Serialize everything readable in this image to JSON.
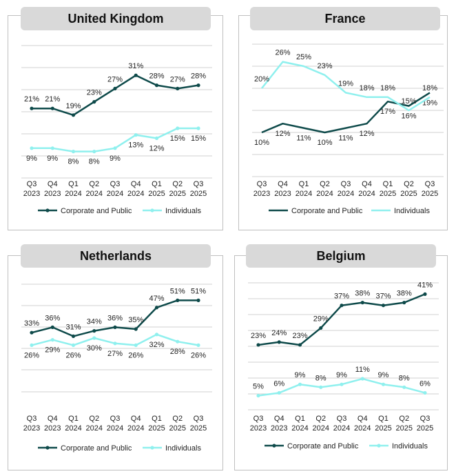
{
  "palette": {
    "dark": "#0e4a4a",
    "light": "#8ff0ee",
    "grid": "#d0d0d0",
    "text": "#222222"
  },
  "chart_data": [
    {
      "id": "uk",
      "type": "line",
      "title": "United Kingdom",
      "categories": [
        [
          "Q3",
          "2023"
        ],
        [
          "Q4",
          "2023"
        ],
        [
          "Q1",
          "2024"
        ],
        [
          "Q2",
          "2024"
        ],
        [
          "Q3",
          "2024"
        ],
        [
          "Q4",
          "2024"
        ],
        [
          "Q1",
          "2025"
        ],
        [
          "Q2",
          "2025"
        ],
        [
          "Q3",
          "2025"
        ]
      ],
      "ylim": [
        0,
        40
      ],
      "series": [
        {
          "name": "Corporate and Public",
          "values": [
            21,
            21,
            19,
            23,
            27,
            31,
            28,
            27,
            28
          ],
          "labels": [
            "21%",
            "21%",
            "19%",
            "23%",
            "27%",
            "31%",
            "28%",
            "27%",
            "28%"
          ],
          "label_pos": "above",
          "markers": true
        },
        {
          "name": "Individuals",
          "values": [
            9,
            9,
            8,
            8,
            9,
            13,
            12,
            15,
            15
          ],
          "labels": [
            "9%",
            "9%",
            "8%",
            "8%",
            "9%",
            "13%",
            "12%",
            "15%",
            "15%"
          ],
          "label_pos": "below",
          "markers": true
        }
      ]
    },
    {
      "id": "fr",
      "type": "line",
      "title": "France",
      "categories": [
        [
          "Q3",
          "2023"
        ],
        [
          "Q4",
          "2023"
        ],
        [
          "Q1",
          "2024"
        ],
        [
          "Q2",
          "2024"
        ],
        [
          "Q3",
          "2024"
        ],
        [
          "Q4",
          "2024"
        ],
        [
          "Q1",
          "2025"
        ],
        [
          "Q2",
          "2025"
        ],
        [
          "Q3",
          "2025"
        ]
      ],
      "ylim": [
        0,
        30
      ],
      "series": [
        {
          "name": "Corporate and Public",
          "values": [
            10,
            12,
            11,
            10,
            11,
            12,
            17,
            16,
            19
          ],
          "labels": [
            "10%",
            "12%",
            "11%",
            "10%",
            "11%",
            "12%",
            "17%",
            "16%",
            "19%"
          ],
          "label_pos": "below",
          "markers": false
        },
        {
          "name": "Individuals",
          "values": [
            20,
            26,
            25,
            23,
            19,
            18,
            18,
            15,
            18
          ],
          "labels": [
            "20%",
            "26%",
            "25%",
            "23%",
            "19%",
            "18%",
            "18%",
            "15%",
            "18%"
          ],
          "label_pos": "above",
          "markers": false
        }
      ]
    },
    {
      "id": "nl",
      "type": "line",
      "title": "Netherlands",
      "categories": [
        [
          "Q3",
          "2023"
        ],
        [
          "Q4",
          "2023"
        ],
        [
          "Q1",
          "2024"
        ],
        [
          "Q2",
          "2024"
        ],
        [
          "Q3",
          "2024"
        ],
        [
          "Q4",
          "2024"
        ],
        [
          "Q1",
          "2025"
        ],
        [
          "Q2",
          "2025"
        ],
        [
          "Q3",
          "2025"
        ]
      ],
      "ylim": [
        0,
        60
      ],
      "series": [
        {
          "name": "Corporate and Public",
          "values": [
            33,
            36,
            31,
            34,
            36,
            35,
            47,
            51,
            51
          ],
          "labels": [
            "33%",
            "36%",
            "31%",
            "34%",
            "36%",
            "35%",
            "47%",
            "51%",
            "51%"
          ],
          "label_pos": "above",
          "markers": true
        },
        {
          "name": "Individuals",
          "values": [
            26,
            29,
            26,
            30,
            27,
            26,
            32,
            28,
            26
          ],
          "labels": [
            "26%",
            "29%",
            "26%",
            "30%",
            "27%",
            "26%",
            "32%",
            "28%",
            "26%"
          ],
          "label_pos": "below",
          "markers": true
        }
      ]
    },
    {
      "id": "be",
      "type": "line",
      "title": "Belgium",
      "categories": [
        [
          "Q3",
          "2023"
        ],
        [
          "Q4",
          "2023"
        ],
        [
          "Q1",
          "2024"
        ],
        [
          "Q2",
          "2024"
        ],
        [
          "Q3",
          "2024"
        ],
        [
          "Q4",
          "2024"
        ],
        [
          "Q1",
          "2025"
        ],
        [
          "Q2",
          "2025"
        ],
        [
          "Q3",
          "2025"
        ]
      ],
      "ylim": [
        0,
        45
      ],
      "series": [
        {
          "name": "Corporate and Public",
          "values": [
            23,
            24,
            23,
            29,
            37,
            38,
            37,
            38,
            41
          ],
          "labels": [
            "23%",
            "24%",
            "23%",
            "29%",
            "37%",
            "38%",
            "37%",
            "38%",
            "41%"
          ],
          "label_pos": "above",
          "markers": true
        },
        {
          "name": "Individuals",
          "values": [
            5,
            6,
            9,
            8,
            9,
            11,
            9,
            8,
            6
          ],
          "labels": [
            "5%",
            "6%",
            "9%",
            "8%",
            "9%",
            "11%",
            "9%",
            "8%",
            "6%"
          ],
          "label_pos": "above",
          "markers": true
        }
      ]
    }
  ]
}
